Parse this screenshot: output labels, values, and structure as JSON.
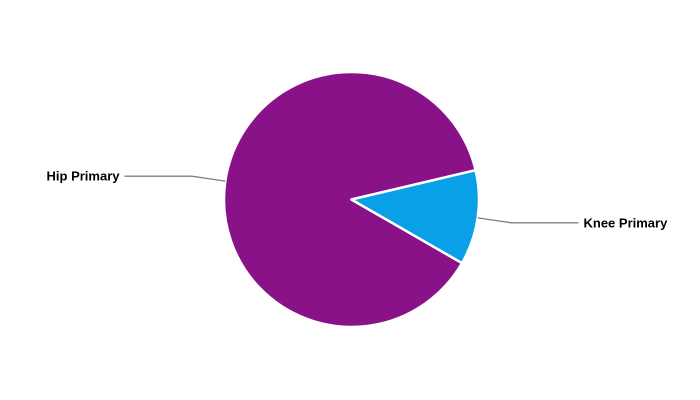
{
  "chart_data": {
    "type": "pie",
    "title": "",
    "slices": [
      {
        "label": "Hip Primary",
        "value": 88,
        "color": "#8A1289"
      },
      {
        "label": "Knee Primary",
        "value": 12,
        "color": "#0AA0E8"
      }
    ],
    "start_angle_deg": 29.9,
    "direction": "clockwise",
    "slice_border_color": "#FFFFFF",
    "leader_line_color": "#808080",
    "label_text_color": "#000000",
    "background_color": "#FFFFFF",
    "legend": "none"
  }
}
